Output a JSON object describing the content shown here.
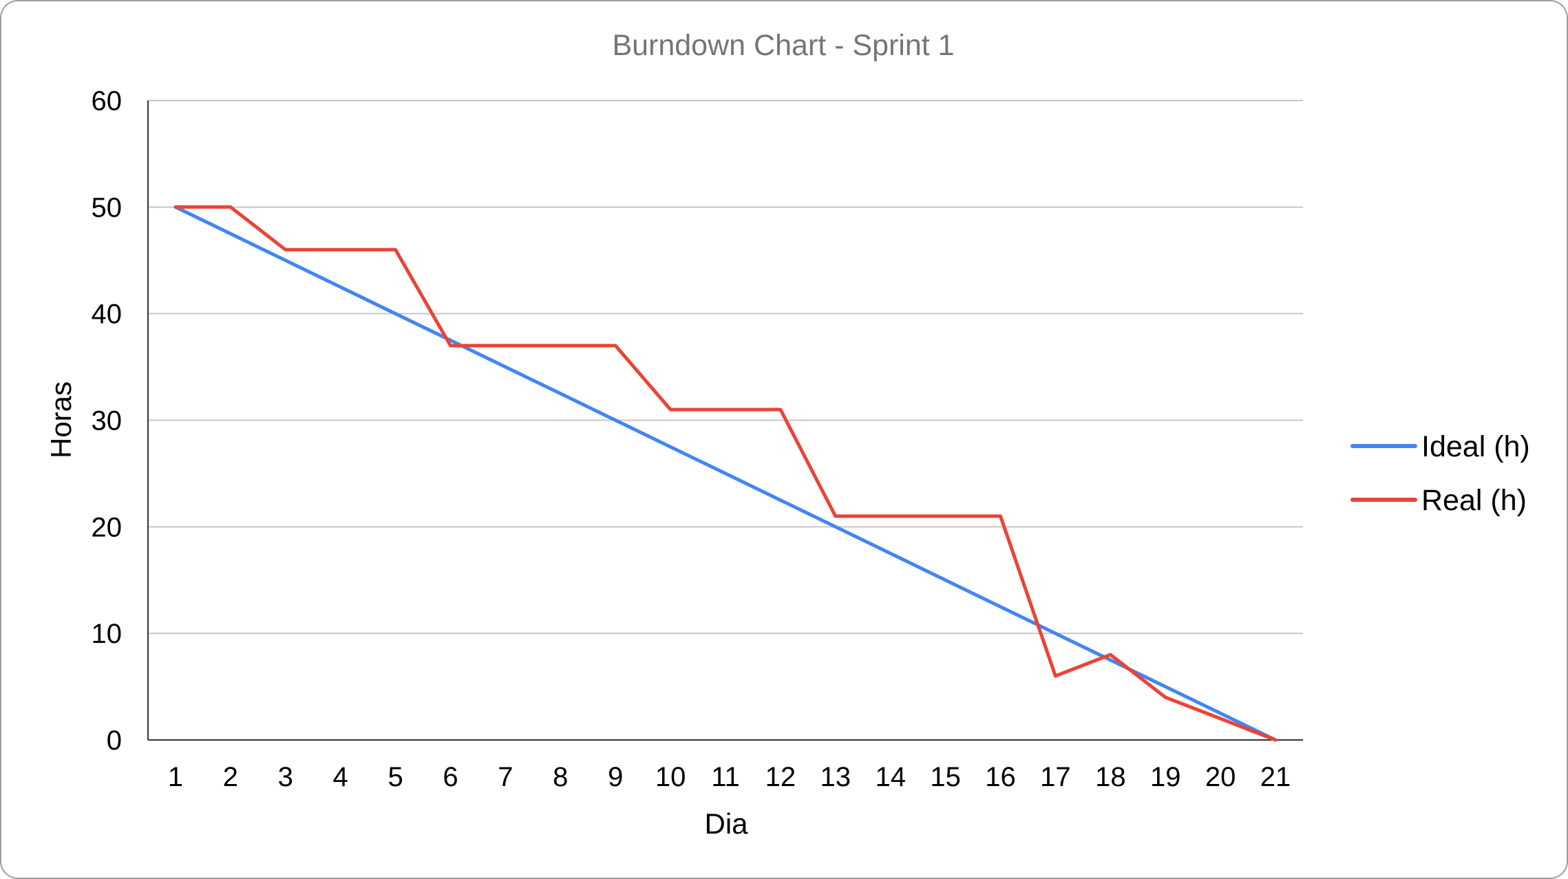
{
  "chart_data": {
    "type": "line",
    "title": "Burndown Chart - Sprint 1",
    "xlabel": "Dia",
    "ylabel": "Horas",
    "x": [
      1,
      2,
      3,
      4,
      5,
      6,
      7,
      8,
      9,
      10,
      11,
      12,
      13,
      14,
      15,
      16,
      17,
      18,
      19,
      20,
      21
    ],
    "ylim": [
      0,
      60
    ],
    "yticks": [
      0,
      10,
      20,
      30,
      40,
      50,
      60
    ],
    "grid": true,
    "legend": "right",
    "series": [
      {
        "name": "Ideal (h)",
        "color": "#4285f4",
        "values": [
          50,
          47.5,
          45,
          42.5,
          40,
          37.5,
          35,
          32.5,
          30,
          27.5,
          25,
          22.5,
          20,
          17.5,
          15,
          12.5,
          10,
          7.5,
          5,
          2.5,
          0
        ]
      },
      {
        "name": "Real (h)",
        "color": "#ea4335",
        "values": [
          50,
          50,
          46,
          46,
          46,
          37,
          37,
          37,
          37,
          31,
          31,
          31,
          21,
          21,
          21,
          21,
          6,
          8,
          4,
          2,
          0
        ]
      }
    ]
  }
}
